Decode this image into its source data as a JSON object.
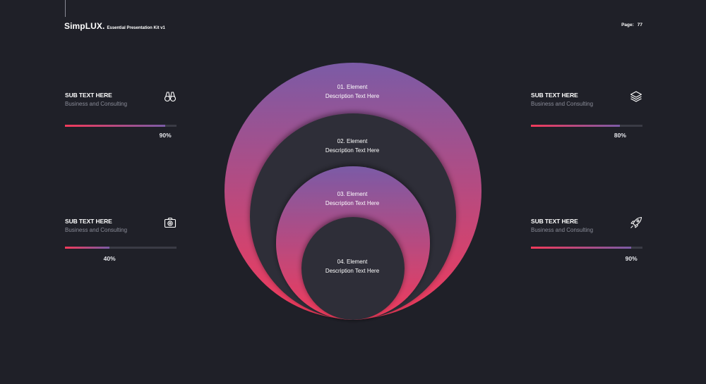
{
  "header": {
    "brand_name": "SimpLUX.",
    "brand_subtitle": "Essential Presentation Kit v1",
    "page_label": "Page:",
    "page_number": "77"
  },
  "stats": [
    {
      "title": "SUB TEXT HERE",
      "subtitle": "Business and Consulting",
      "percent_label": "90%",
      "value": 0.9,
      "icon": "binoculars-icon"
    },
    {
      "title": "SUB TEXT HERE",
      "subtitle": "Business and Consulting",
      "percent_label": "40%",
      "value": 0.4,
      "icon": "camera-icon"
    },
    {
      "title": "SUB TEXT HERE",
      "subtitle": "Business and Consulting",
      "percent_label": "80%",
      "value": 0.8,
      "icon": "layers-icon"
    },
    {
      "title": "SUB TEXT HERE",
      "subtitle": "Business and Consulting",
      "percent_label": "90%",
      "value": 0.9,
      "icon": "rocket-icon"
    }
  ],
  "elements": [
    {
      "title": "01. Element",
      "description": "Description Text Here"
    },
    {
      "title": "02. Element",
      "description": "Description Text Here"
    },
    {
      "title": "03. Element",
      "description": "Description Text Here"
    },
    {
      "title": "04. Element",
      "description": "Description Text Here"
    }
  ],
  "colors": {
    "background": "#1f2028",
    "gradient_top": "#7b5ba6",
    "gradient_bottom": "#f23a5a",
    "dark_fill": "#2e2f38"
  }
}
